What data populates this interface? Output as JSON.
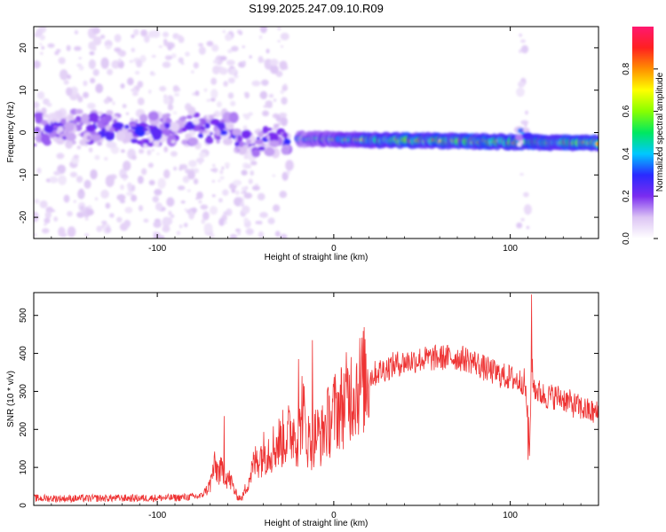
{
  "title": "S199.2025.247.09.10.R09",
  "chart_data": [
    {
      "type": "heatmap",
      "name": "spectrogram",
      "xlabel": "Height of straight line (km)",
      "ylabel": "Frequency (Hz)",
      "xlim": [
        -170,
        150
      ],
      "ylim": [
        -25,
        25
      ],
      "xticks": [
        -100,
        0,
        100
      ],
      "xtick_labels": [
        "-100",
        "0",
        "100"
      ],
      "yticks": [
        -20,
        -10,
        0,
        10,
        20
      ],
      "ytick_labels": [
        "-20",
        "-10",
        "0",
        "10",
        "20"
      ],
      "features": [
        {
          "label": "noise band",
          "x_range": [
            -170,
            -55
          ],
          "freq_center": 0.5,
          "freq_halfwidth": 6,
          "amplitude": 0.2
        },
        {
          "label": "disturbed region",
          "x_range": [
            -55,
            -25
          ],
          "freq_center": -2,
          "freq_halfwidth": 5,
          "amplitude": 0.2
        },
        {
          "label": "signal line",
          "x_range": [
            -20,
            150
          ],
          "freq_start": -1.5,
          "freq_end": -2.5,
          "amplitude": 0.85
        },
        {
          "label": "transient",
          "x_range": [
            105,
            110
          ],
          "freq_center": 0,
          "freq_halfwidth": 3,
          "amplitude": 0.3
        }
      ],
      "colorbar": {
        "label": "Normalized spectral amplitude",
        "range": [
          0,
          1
        ],
        "ticks": [
          0.0,
          0.2,
          0.4,
          0.6,
          0.8
        ],
        "tick_labels": [
          "0.0",
          "0.2",
          "0.4",
          "0.6",
          "0.8"
        ],
        "colors": [
          "#ffffff",
          "#dcc4f4",
          "#7a2cf0",
          "#2a2aff",
          "#00c8ff",
          "#00e860",
          "#88ff00",
          "#ffff00",
          "#ff9000",
          "#ff2020",
          "#ff1870"
        ]
      }
    },
    {
      "type": "line",
      "name": "snr",
      "xlabel": "Height of straight line (km)",
      "ylabel": "SNR (10 * v/v)",
      "xlim": [
        -170,
        150
      ],
      "ylim": [
        0,
        560
      ],
      "xticks": [
        -100,
        0,
        100
      ],
      "xtick_labels": [
        "-100",
        "0",
        "100"
      ],
      "yticks": [
        0,
        100,
        200,
        300,
        400,
        500
      ],
      "ytick_labels": [
        "0",
        "100",
        "200",
        "300",
        "400",
        "500"
      ],
      "line_color": "#ee3333",
      "series": [
        {
          "name": "SNR",
          "x": [
            -170,
            -150,
            -130,
            -110,
            -90,
            -75,
            -70,
            -68,
            -65,
            -62,
            -58,
            -55,
            -52,
            -48,
            -45,
            -42,
            -38,
            -35,
            -30,
            -25,
            -22,
            -20,
            -18,
            -15,
            -12,
            -10,
            -7,
            -5,
            -2,
            0,
            5,
            10,
            15,
            20,
            25,
            30,
            35,
            40,
            45,
            50,
            55,
            60,
            65,
            70,
            75,
            80,
            85,
            90,
            95,
            100,
            105,
            108,
            110,
            111,
            112,
            113,
            115,
            120,
            125,
            130,
            135,
            140,
            145,
            150
          ],
          "values": [
            15,
            14,
            15,
            15,
            16,
            20,
            55,
            100,
            90,
            85,
            60,
            25,
            18,
            70,
            110,
            130,
            145,
            150,
            170,
            190,
            200,
            160,
            260,
            175,
            165,
            190,
            180,
            210,
            225,
            245,
            265,
            300,
            320,
            340,
            355,
            365,
            375,
            380,
            385,
            388,
            390,
            392,
            393,
            392,
            388,
            380,
            365,
            355,
            345,
            340,
            330,
            330,
            240,
            130,
            400,
            320,
            305,
            290,
            290,
            285,
            270,
            260,
            250,
            245
          ]
        }
      ],
      "spikes": [
        {
          "x": -62,
          "y": 235
        },
        {
          "x": -20,
          "y": 385
        },
        {
          "x": -12,
          "y": 435
        },
        {
          "x": 112,
          "y": 555
        },
        {
          "x": 110,
          "y": 120
        }
      ]
    }
  ]
}
